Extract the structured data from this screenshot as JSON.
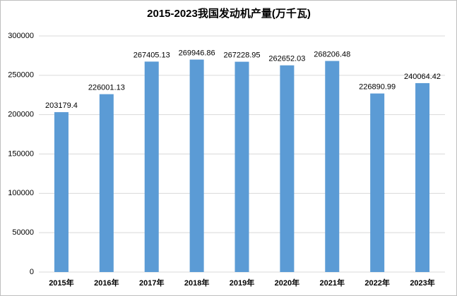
{
  "chart_data": {
    "type": "bar",
    "title": "2015-2023我国发动机产量(万千瓦)",
    "categories": [
      "2015年",
      "2016年",
      "2017年",
      "2018年",
      "2019年",
      "2020年",
      "2021年",
      "2022年",
      "2023年"
    ],
    "values": [
      203179.4,
      226001.13,
      267405.13,
      269946.86,
      267228.95,
      262652.03,
      268206.48,
      226890.99,
      240064.42
    ],
    "color": "#5b9bd5",
    "ylim": [
      0,
      300000
    ],
    "yticks": [
      0,
      50000,
      100000,
      150000,
      200000,
      250000,
      300000
    ],
    "grid": true
  }
}
